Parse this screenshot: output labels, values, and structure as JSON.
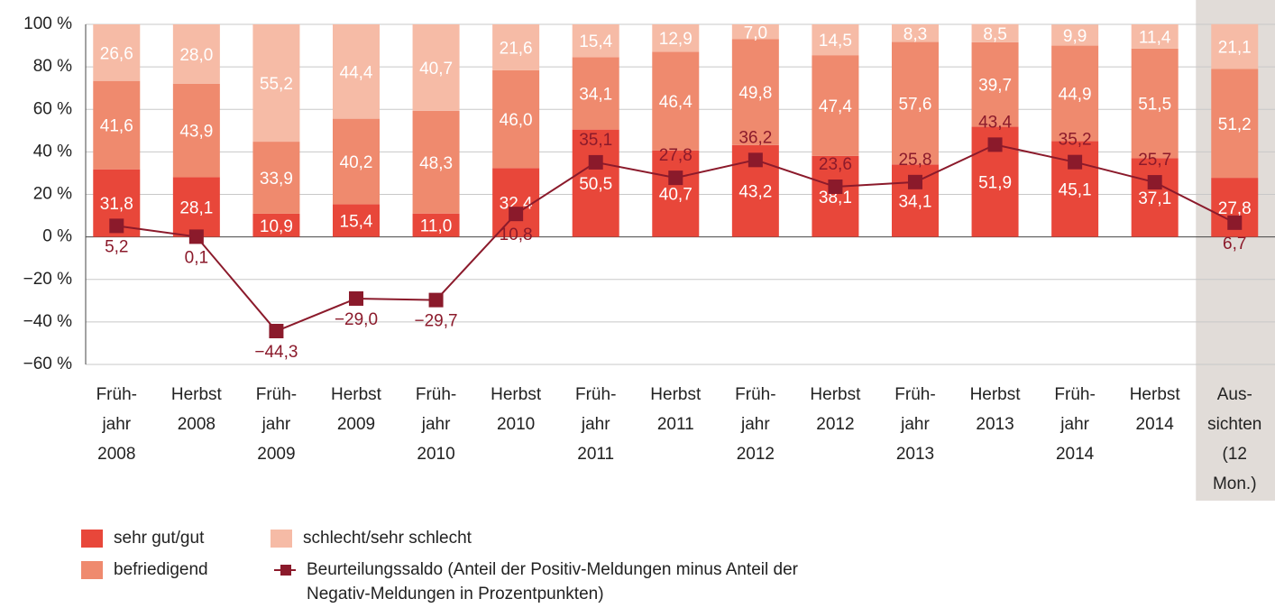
{
  "chart_data": {
    "type": "stacked_bar_line",
    "categories": [
      [
        "Früh-",
        "jahr",
        "2008"
      ],
      [
        "Herbst",
        "2008"
      ],
      [
        "Früh-",
        "jahr",
        "2009"
      ],
      [
        "Herbst",
        "2009"
      ],
      [
        "Früh-",
        "jahr",
        "2010"
      ],
      [
        "Herbst",
        "2010"
      ],
      [
        "Früh-",
        "jahr",
        "2011"
      ],
      [
        "Herbst",
        "2011"
      ],
      [
        "Früh-",
        "jahr",
        "2012"
      ],
      [
        "Herbst",
        "2012"
      ],
      [
        "Früh-",
        "jahr",
        "2013"
      ],
      [
        "Herbst",
        "2013"
      ],
      [
        "Früh-",
        "jahr",
        "2014"
      ],
      [
        "Herbst",
        "2014"
      ],
      [
        "Aus-",
        "sichten",
        "(12",
        "Mon.)"
      ]
    ],
    "series": [
      {
        "name": "sehr gut/gut",
        "color": "#e8473a",
        "values": [
          31.8,
          28.1,
          10.9,
          15.4,
          11.0,
          32.4,
          50.5,
          40.7,
          43.2,
          38.1,
          34.1,
          51.9,
          45.1,
          37.1,
          27.8
        ],
        "value_labels": [
          "31,8",
          "28,1",
          "10,9",
          "15,4",
          "11,0",
          "32,4",
          "50,5",
          "40,7",
          "43,2",
          "38,1",
          "34,1",
          "51,9",
          "45,1",
          "37,1",
          "27,8"
        ]
      },
      {
        "name": "befriedigend",
        "color": "#ef8a6e",
        "values": [
          41.6,
          43.9,
          33.9,
          40.2,
          48.3,
          46.0,
          34.1,
          46.4,
          49.8,
          47.4,
          57.6,
          39.7,
          44.9,
          51.5,
          51.2
        ],
        "value_labels": [
          "41,6",
          "43,9",
          "33,9",
          "40,2",
          "48,3",
          "46,0",
          "34,1",
          "46,4",
          "49,8",
          "47,4",
          "57,6",
          "39,7",
          "44,9",
          "51,5",
          "51,2"
        ]
      },
      {
        "name": "schlecht/sehr schlecht",
        "color": "#f6bba6",
        "values": [
          26.6,
          28.0,
          55.2,
          44.4,
          40.7,
          21.6,
          15.4,
          12.9,
          7.0,
          14.5,
          8.3,
          8.5,
          9.9,
          11.4,
          21.1
        ],
        "value_labels": [
          "26,6",
          "28,0",
          "55,2",
          "44,4",
          "40,7",
          "21,6",
          "15,4",
          "12,9",
          "7,0",
          "14,5",
          "8,3",
          "8,5",
          "9,9",
          "11,4",
          "21,1"
        ]
      },
      {
        "name": "Beurteilungssaldo (Anteil der Positiv-Meldungen minus Anteil der Negativ-Meldungen in Prozentpunkten)",
        "type": "line",
        "color": "#8b1a2b",
        "values": [
          5.2,
          0.1,
          -44.3,
          -29.0,
          -29.7,
          10.8,
          35.1,
          27.8,
          36.2,
          23.6,
          25.8,
          43.4,
          35.2,
          25.7,
          6.7
        ],
        "value_labels": [
          "5,2",
          "0,1",
          "−44,3",
          "−29,0",
          "−29,7",
          "10,8",
          "35,1",
          "27,8",
          "36,2",
          "23,6",
          "25,8",
          "43,4",
          "35,2",
          "25,7",
          "6,7"
        ]
      }
    ],
    "ylim": [
      -60,
      100
    ],
    "yticks": [
      {
        "value": 100,
        "label": "100 %"
      },
      {
        "value": 80,
        "label": "80 %"
      },
      {
        "value": 60,
        "label": "60 %"
      },
      {
        "value": 40,
        "label": "40 %"
      },
      {
        "value": 20,
        "label": "20 %"
      },
      {
        "value": 0,
        "label": "0 %"
      },
      {
        "value": -20,
        "label": "−20 %"
      },
      {
        "value": -40,
        "label": "−40 %"
      },
      {
        "value": -60,
        "label": "−60 %"
      }
    ],
    "grid": true
  }
}
